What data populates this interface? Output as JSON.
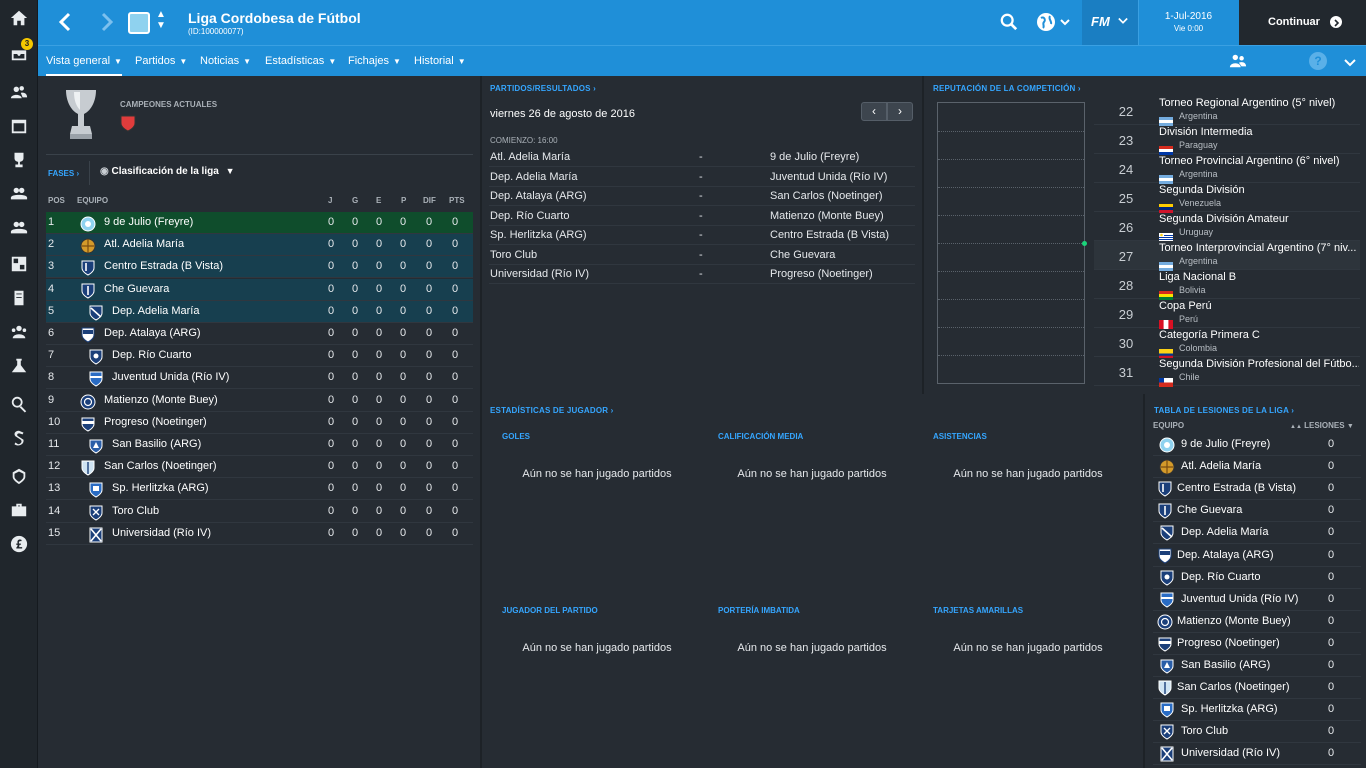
{
  "topbar": {
    "title": "Liga Cordobesa de Fútbol",
    "subtitle": "(ID:100000077)",
    "date": "1-Jul-2016",
    "time": "Vie 0:00",
    "continue_label": "Continuar",
    "fm_label": "FM"
  },
  "sidebar": {
    "badge": "3"
  },
  "nav": [
    "Vista general",
    "Partidos",
    "Noticias",
    "Estadísticas",
    "Fichajes",
    "Historial"
  ],
  "champions": {
    "label": "CAMPEONES ACTUALES"
  },
  "phases": {
    "label": "FASES",
    "dropdown": "Clasificación de la liga"
  },
  "standings": {
    "headers": {
      "pos": "POS",
      "team": "EQUIPO",
      "j": "J",
      "g": "G",
      "e": "E",
      "p": "P",
      "dif": "DIF",
      "pts": "PTS"
    },
    "rows": [
      {
        "pos": "1",
        "team": "9 de Julio (Freyre)",
        "j": "0",
        "g": "0",
        "e": "0",
        "p": "0",
        "dif": "0",
        "pts": "0"
      },
      {
        "pos": "2",
        "team": "Atl. Adelia María",
        "j": "0",
        "g": "0",
        "e": "0",
        "p": "0",
        "dif": "0",
        "pts": "0"
      },
      {
        "pos": "3",
        "team": "Centro Estrada (B Vista)",
        "j": "0",
        "g": "0",
        "e": "0",
        "p": "0",
        "dif": "0",
        "pts": "0"
      },
      {
        "pos": "4",
        "team": "Che Guevara",
        "j": "0",
        "g": "0",
        "e": "0",
        "p": "0",
        "dif": "0",
        "pts": "0"
      },
      {
        "pos": "5",
        "team": "Dep. Adelia María",
        "j": "0",
        "g": "0",
        "e": "0",
        "p": "0",
        "dif": "0",
        "pts": "0"
      },
      {
        "pos": "6",
        "team": "Dep. Atalaya (ARG)",
        "j": "0",
        "g": "0",
        "e": "0",
        "p": "0",
        "dif": "0",
        "pts": "0"
      },
      {
        "pos": "7",
        "team": "Dep. Río Cuarto",
        "j": "0",
        "g": "0",
        "e": "0",
        "p": "0",
        "dif": "0",
        "pts": "0"
      },
      {
        "pos": "8",
        "team": "Juventud Unida (Río IV)",
        "j": "0",
        "g": "0",
        "e": "0",
        "p": "0",
        "dif": "0",
        "pts": "0"
      },
      {
        "pos": "9",
        "team": "Matienzo (Monte Buey)",
        "j": "0",
        "g": "0",
        "e": "0",
        "p": "0",
        "dif": "0",
        "pts": "0"
      },
      {
        "pos": "10",
        "team": "Progreso (Noetinger)",
        "j": "0",
        "g": "0",
        "e": "0",
        "p": "0",
        "dif": "0",
        "pts": "0"
      },
      {
        "pos": "11",
        "team": "San Basilio (ARG)",
        "j": "0",
        "g": "0",
        "e": "0",
        "p": "0",
        "dif": "0",
        "pts": "0"
      },
      {
        "pos": "12",
        "team": "San Carlos (Noetinger)",
        "j": "0",
        "g": "0",
        "e": "0",
        "p": "0",
        "dif": "0",
        "pts": "0"
      },
      {
        "pos": "13",
        "team": "Sp. Herlitzka (ARG)",
        "j": "0",
        "g": "0",
        "e": "0",
        "p": "0",
        "dif": "0",
        "pts": "0"
      },
      {
        "pos": "14",
        "team": "Toro Club",
        "j": "0",
        "g": "0",
        "e": "0",
        "p": "0",
        "dif": "0",
        "pts": "0"
      },
      {
        "pos": "15",
        "team": "Universidad (Río IV)",
        "j": "0",
        "g": "0",
        "e": "0",
        "p": "0",
        "dif": "0",
        "pts": "0"
      }
    ]
  },
  "fixtures": {
    "title": "PARTIDOS/RESULTADOS",
    "date": "viernes 26 de agosto de 2016",
    "kickoff": "COMIENZO: 16:00",
    "rows": [
      {
        "home": "Atl. Adelia María",
        "sep": "-",
        "away": "9 de Julio (Freyre)"
      },
      {
        "home": "Dep. Adelia María",
        "sep": "-",
        "away": "Juventud Unida (Río IV)"
      },
      {
        "home": "Dep. Atalaya (ARG)",
        "sep": "-",
        "away": "San Carlos (Noetinger)"
      },
      {
        "home": "Dep. Río Cuarto",
        "sep": "-",
        "away": "Matienzo (Monte Buey)"
      },
      {
        "home": "Sp. Herlitzka (ARG)",
        "sep": "-",
        "away": "Centro Estrada (B Vista)"
      },
      {
        "home": "Toro Club",
        "sep": "-",
        "away": "Che Guevara"
      },
      {
        "home": "Universidad (Río IV)",
        "sep": "-",
        "away": "Progreso (Noetinger)"
      }
    ]
  },
  "reputation": {
    "title": "REPUTACIÓN DE LA COMPETICIÓN",
    "rows": [
      {
        "rank": "22",
        "name": "Torneo Regional Argentino (5° nivel)",
        "country": "Argentina",
        "flag": "ar"
      },
      {
        "rank": "23",
        "name": "División Intermedia",
        "country": "Paraguay",
        "flag": "py"
      },
      {
        "rank": "24",
        "name": "Torneo Provincial Argentino (6° nivel)",
        "country": "Argentina",
        "flag": "ar"
      },
      {
        "rank": "25",
        "name": "Segunda División",
        "country": "Venezuela",
        "flag": "ve"
      },
      {
        "rank": "26",
        "name": "Segunda División Amateur",
        "country": "Uruguay",
        "flag": "uy"
      },
      {
        "rank": "27",
        "name": "Torneo Interprovincial Argentino (7° niv...",
        "country": "Argentina",
        "flag": "ar",
        "highlight": true
      },
      {
        "rank": "28",
        "name": "Liga Nacional B",
        "country": "Bolivia",
        "flag": "bo"
      },
      {
        "rank": "29",
        "name": "Copa Perú",
        "country": "Perú",
        "flag": "pe"
      },
      {
        "rank": "30",
        "name": "Categoría Primera C",
        "country": "Colombia",
        "flag": "co"
      },
      {
        "rank": "31",
        "name": "Segunda División Profesional del Fútbo...",
        "country": "Chile",
        "flag": "cl"
      }
    ]
  },
  "player_stats": {
    "title": "ESTADÍSTICAS DE JUGADOR",
    "empty": "Aún no se han jugado partidos",
    "boxes": [
      "GOLES",
      "CALIFICACIÓN MEDIA",
      "ASISTENCIAS",
      "JUGADOR DEL PARTIDO",
      "PORTERÍA IMBATIDA",
      "TARJETAS AMARILLAS"
    ]
  },
  "injuries": {
    "title": "TABLA DE LESIONES DE LA LIGA",
    "team_header": "EQUIPO",
    "col_header": "LESIONES",
    "rows": [
      {
        "team": "9 de Julio (Freyre)",
        "value": "0"
      },
      {
        "team": "Atl. Adelia María",
        "value": "0"
      },
      {
        "team": "Centro Estrada (B Vista)",
        "value": "0"
      },
      {
        "team": "Che Guevara",
        "value": "0"
      },
      {
        "team": "Dep. Adelia María",
        "value": "0"
      },
      {
        "team": "Dep. Atalaya (ARG)",
        "value": "0"
      },
      {
        "team": "Dep. Río Cuarto",
        "value": "0"
      },
      {
        "team": "Juventud Unida (Río IV)",
        "value": "0"
      },
      {
        "team": "Matienzo (Monte Buey)",
        "value": "0"
      },
      {
        "team": "Progreso (Noetinger)",
        "value": "0"
      },
      {
        "team": "San Basilio (ARG)",
        "value": "0"
      },
      {
        "team": "San Carlos (Noetinger)",
        "value": "0"
      },
      {
        "team": "Sp. Herlitzka (ARG)",
        "value": "0"
      },
      {
        "team": "Toro Club",
        "value": "0"
      },
      {
        "team": "Universidad (Río IV)",
        "value": "0"
      }
    ]
  },
  "colors": {
    "accent": "#1f8fd8",
    "link": "#35a6ff",
    "qualify_green": "#0f4d2c",
    "qualify_blue": "#173f4f"
  }
}
